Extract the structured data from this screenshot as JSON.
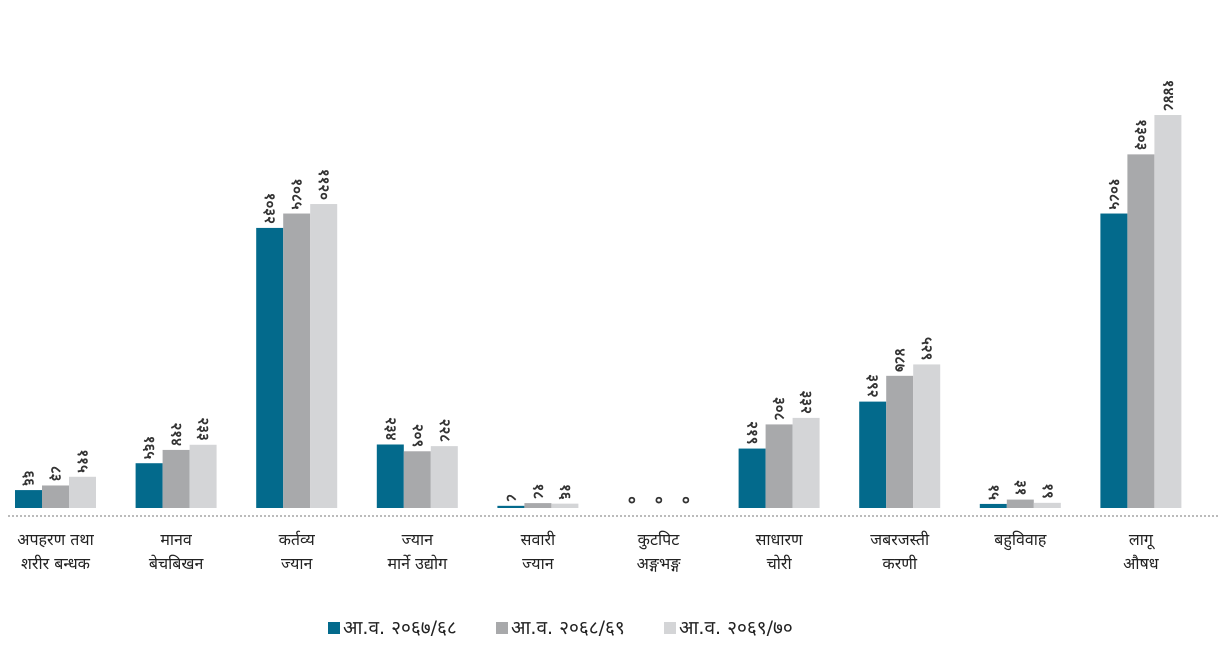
{
  "chart_data": {
    "type": "bar",
    "title": "",
    "xlabel": "",
    "ylabel": "",
    "ylim": [
      0,
      1500
    ],
    "grid": false,
    "legend_position": "bottom",
    "categories": [
      [
        "अपहरण तथा",
        "शरीर बन्धक"
      ],
      [
        "मानव",
        "बेचबिखन"
      ],
      [
        "कर्तव्य",
        "ज्यान"
      ],
      [
        "ज्यान",
        "मार्ने उद्योग"
      ],
      [
        "सवारी",
        "ज्यान"
      ],
      [
        "कुटपिट",
        "अङ्गभङ्ग"
      ],
      [
        "साधारण",
        "चोरी"
      ],
      [
        "जबरजस्ती",
        "करणी"
      ],
      [
        "बहुविवाह"
      ],
      [
        "लागू",
        "औषध"
      ]
    ],
    "series": [
      {
        "name": "आ.व. २०६७/६८",
        "color": "#036a8c",
        "values": [
          66,
          165,
          1032,
          234,
          8,
          0,
          219,
          392,
          15,
          1085
        ],
        "labels": [
          "६६",
          "१६५",
          "१०३२",
          "२३४",
          "८",
          "०",
          "२१९",
          "३९२",
          "१५",
          "१०८५"
        ]
      },
      {
        "name": "आ.व. २०६८/६९",
        "color": "#a8a9ab",
        "values": [
          83,
          214,
          1085,
          209,
          18,
          0,
          308,
          487,
          31,
          1303
        ],
        "labels": [
          "८३",
          "२१४",
          "१०८५",
          "२०९",
          "१८",
          "०",
          "३०८",
          "४८७",
          "३१",
          "१३०३"
        ]
      },
      {
        "name": "आ.व. २०६९/७०",
        "color": "#d4d5d7",
        "values": [
          115,
          233,
          1120,
          228,
          16,
          0,
          332,
          529,
          19,
          1448
        ],
        "labels": [
          "११५",
          "२३३",
          "११२०",
          "२२८",
          "१६",
          "०",
          "३३२",
          "५२९",
          "१९",
          "१४४८"
        ]
      }
    ]
  }
}
